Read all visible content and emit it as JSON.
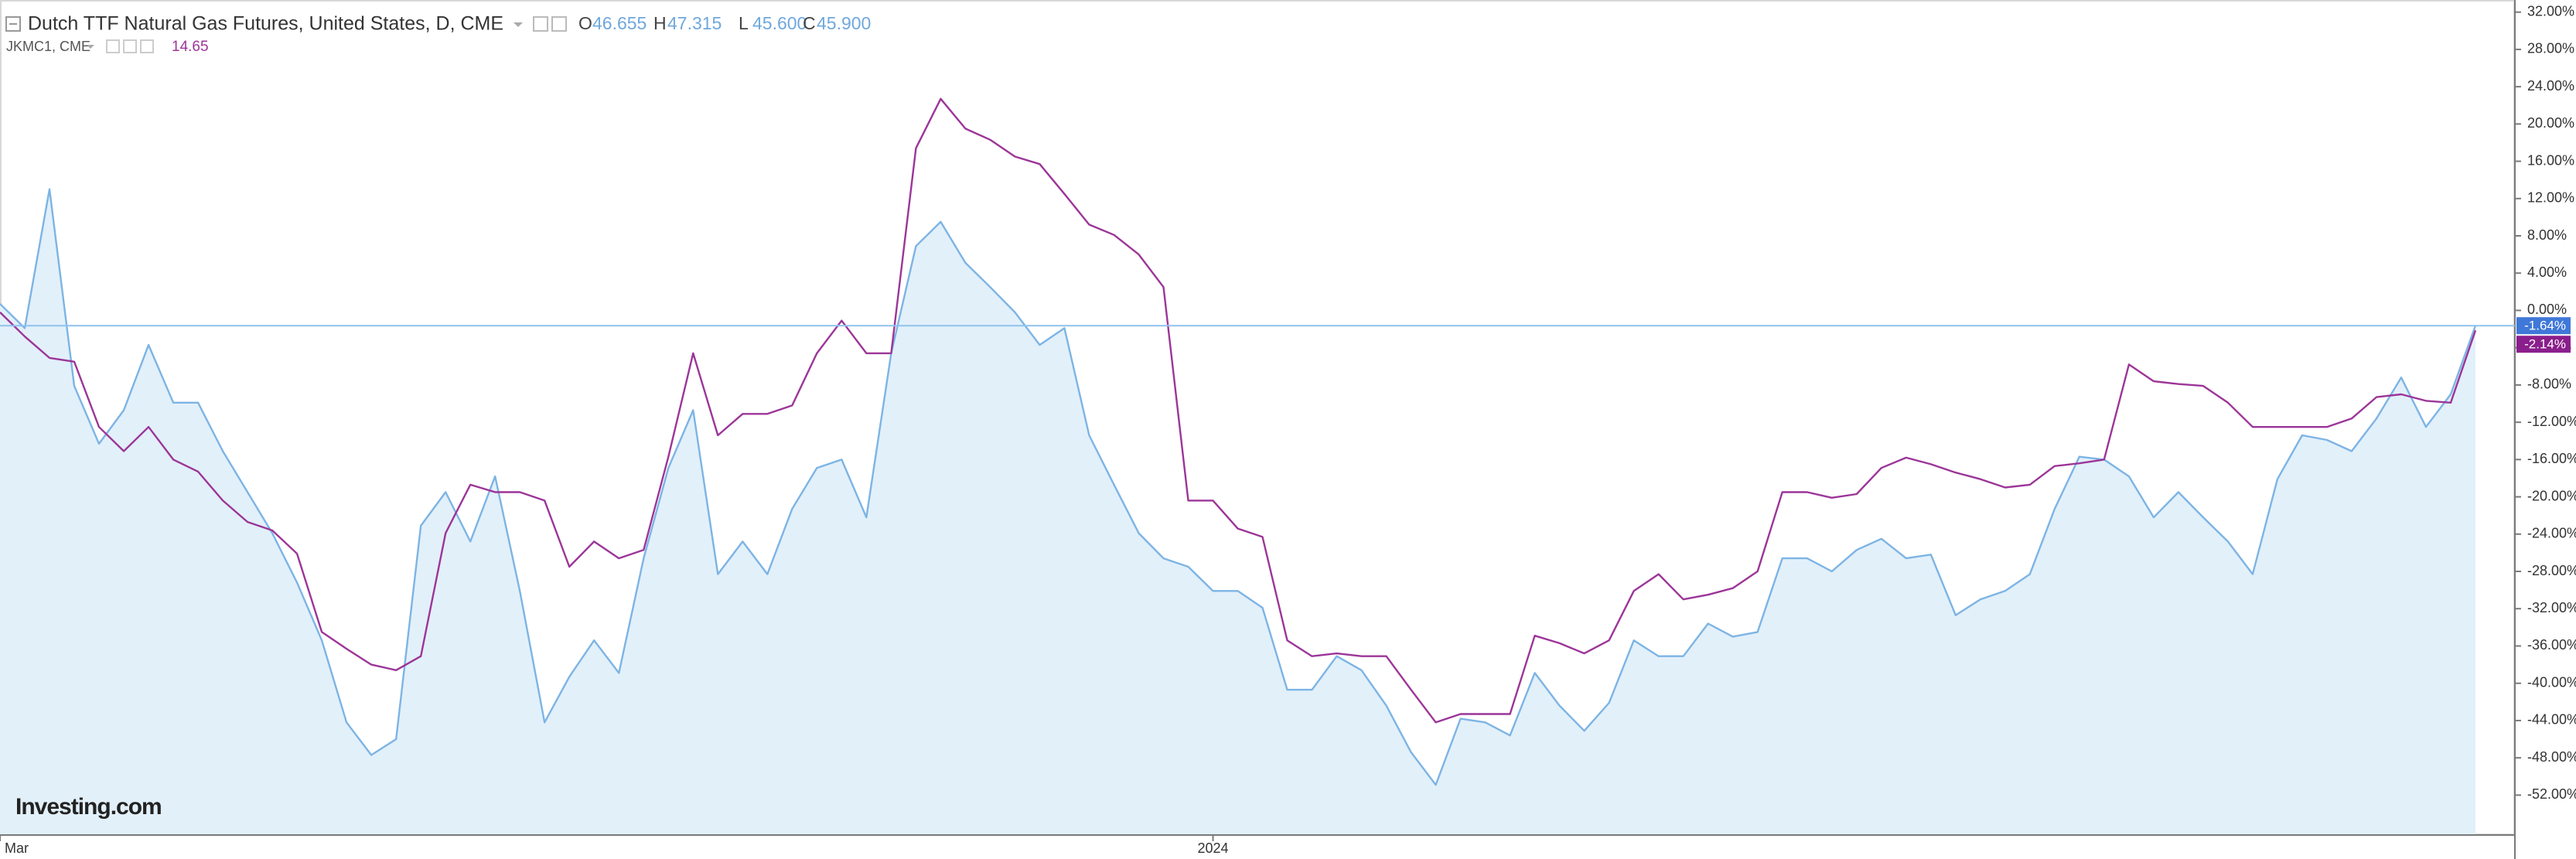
{
  "chart_data": {
    "type": "line",
    "title": "Dutch TTF Natural Gas Futures, United States, D, CME",
    "ohlc": [
      {
        "label": "O",
        "value": "46.655"
      },
      {
        "label": "H",
        "value": "47.315"
      },
      {
        "label": "L",
        "value": "45.600"
      },
      {
        "label": "C",
        "value": "45.900"
      }
    ],
    "watermark": "Investing.com",
    "categories": [
      "Mar",
      null,
      null,
      null,
      null,
      null,
      null,
      null,
      null,
      null,
      null,
      null,
      null,
      null,
      null,
      null,
      null,
      null,
      null,
      null,
      null,
      null,
      null,
      null,
      null,
      null,
      null,
      null,
      null,
      null,
      null,
      null,
      null,
      null,
      null,
      null,
      null,
      null,
      null,
      null,
      null,
      null,
      null,
      null,
      null,
      null,
      null,
      null,
      null,
      "2024",
      null,
      null,
      null,
      null,
      null,
      null,
      null,
      null,
      null,
      null,
      null,
      null,
      null,
      null,
      null,
      null,
      null,
      null,
      null,
      null,
      null,
      null,
      null,
      null,
      null,
      null,
      null,
      null,
      null,
      null,
      null,
      null,
      null,
      null,
      null,
      null,
      null,
      null,
      null,
      null,
      null,
      null,
      null,
      null,
      null,
      null,
      null,
      null,
      null,
      null,
      null
    ],
    "ylim": [
      -56.2,
      33.3
    ],
    "yticks": [
      {
        "value": -52,
        "label": "-52.00%"
      },
      {
        "value": -48,
        "label": "-48.00%"
      },
      {
        "value": -44,
        "label": "-44.00%"
      },
      {
        "value": -40,
        "label": "-40.00%"
      },
      {
        "value": -36,
        "label": "-36.00%"
      },
      {
        "value": -32,
        "label": "-32.00%"
      },
      {
        "value": -28,
        "label": "-28.00%"
      },
      {
        "value": -24,
        "label": "-24.00%"
      },
      {
        "value": -20,
        "label": "-20.00%"
      },
      {
        "value": -16,
        "label": "-16.00%"
      },
      {
        "value": -12,
        "label": "-12.00%"
      },
      {
        "value": -8,
        "label": "-8.00%"
      },
      {
        "value": -4,
        "label": "-4.00%"
      },
      {
        "value": 0,
        "label": "0.00%"
      },
      {
        "value": 4,
        "label": "4.00%"
      },
      {
        "value": 8,
        "label": "8.00%"
      },
      {
        "value": 12,
        "label": "12.00%"
      },
      {
        "value": 16,
        "label": "16.00%"
      },
      {
        "value": 20,
        "label": "20.00%"
      },
      {
        "value": 24,
        "label": "24.00%"
      },
      {
        "value": 28,
        "label": "28.00%"
      },
      {
        "value": 32,
        "label": "32.00%"
      }
    ],
    "series": [
      {
        "name": "Dutch TTF Natural Gas Futures, United States, D, CME",
        "color": "#7db4e4",
        "fill": "#e2f0fa",
        "values": [
          0.7,
          -1.9,
          13.0,
          -8.1,
          -14.3,
          -10.7,
          -3.7,
          -9.9,
          -9.9,
          -15.1,
          -19.5,
          -23.9,
          -29.2,
          -35.4,
          -44.2,
          -47.7,
          -46.0,
          -23.1,
          -19.5,
          -24.8,
          -17.8,
          -30.1,
          -44.2,
          -39.3,
          -35.4,
          -38.9,
          -26.6,
          -16.9,
          -10.7,
          -28.3,
          -24.8,
          -28.3,
          -21.3,
          -16.9,
          -16.0,
          -22.2,
          -4.6,
          6.9,
          9.5,
          5.1,
          2.5,
          -0.2,
          -3.7,
          -1.9,
          -13.4,
          -18.7,
          -23.9,
          -26.6,
          -27.5,
          -30.1,
          -30.1,
          -31.9,
          -40.7,
          -40.7,
          -37.1,
          -38.6,
          -42.4,
          -47.4,
          -50.9,
          -43.8,
          -44.2,
          -45.6,
          -38.9,
          -42.4,
          -45.1,
          -42.1,
          -35.4,
          -37.1,
          -37.1,
          -33.6,
          -35.0,
          -34.5,
          -26.6,
          -26.6,
          -28.0,
          -25.7,
          -24.5,
          -26.6,
          -26.2,
          -32.7,
          -31.0,
          -30.1,
          -28.3,
          -21.3,
          -15.7,
          -16.0,
          -17.8,
          -22.2,
          -19.5,
          -22.2,
          -24.8,
          -28.3,
          -18.1,
          -13.4,
          -13.9,
          -15.1,
          -11.6,
          -7.2,
          -12.5,
          -9.0,
          -1.64
        ],
        "value_labels": [
          null,
          null,
          null,
          null,
          null,
          null,
          null,
          null,
          null,
          null,
          null,
          null,
          null,
          null,
          null,
          null,
          null,
          null,
          null,
          null,
          null,
          null,
          null,
          null,
          null,
          null,
          null,
          null,
          null,
          null,
          null,
          null,
          null,
          null,
          null,
          null,
          null,
          null,
          null,
          null,
          null,
          null,
          null,
          null,
          null,
          null,
          null,
          null,
          null,
          null,
          null,
          null,
          null,
          null,
          null,
          null,
          null,
          null,
          null,
          null,
          null,
          null,
          null,
          null,
          null,
          null,
          null,
          null,
          null,
          null,
          null,
          null,
          null,
          null,
          null,
          null,
          null,
          null,
          null,
          null,
          null,
          null,
          null,
          null,
          null,
          null,
          null,
          null,
          null,
          null,
          null,
          null,
          null,
          null,
          null,
          null,
          null,
          null,
          null,
          null,
          "-1.64%"
        ]
      },
      {
        "name": "JKMC1, CME",
        "last": "14.65",
        "color": "#9c3598",
        "values": [
          -0.2,
          -2.8,
          -5.1,
          -5.5,
          -12.5,
          -15.1,
          -12.5,
          -16.0,
          -17.3,
          -20.4,
          -22.7,
          -23.6,
          -26.1,
          -34.5,
          -36.3,
          -38.0,
          -38.6,
          -37.1,
          -23.9,
          -18.7,
          -19.5,
          -19.5,
          -20.4,
          -27.5,
          -24.8,
          -26.6,
          -25.7,
          -15.7,
          -4.6,
          -13.4,
          -11.1,
          -11.1,
          -10.2,
          -4.6,
          -1.1,
          -4.6,
          -4.6,
          17.4,
          22.7,
          19.5,
          18.3,
          16.5,
          15.7,
          12.5,
          9.2,
          8.1,
          6.0,
          2.5,
          -20.4,
          -20.4,
          -23.4,
          -24.3,
          -35.4,
          -37.1,
          -36.8,
          -37.1,
          -37.1,
          -40.7,
          -44.2,
          -43.3,
          -43.3,
          -43.3,
          -34.9,
          -35.7,
          -36.8,
          -35.4,
          -30.1,
          -28.3,
          -31.0,
          -30.5,
          -29.8,
          -28.0,
          -19.5,
          -19.5,
          -20.1,
          -19.7,
          -16.9,
          -15.8,
          -16.5,
          -17.4,
          -18.1,
          -19.0,
          -18.7,
          -16.7,
          -16.4,
          -16.0,
          -5.8,
          -7.6,
          -7.9,
          -8.1,
          -9.9,
          -12.5,
          -12.5,
          -12.5,
          -12.5,
          -11.6,
          -9.3,
          -9.0,
          -9.7,
          -9.9,
          -2.14
        ],
        "value_labels": [
          null,
          null,
          null,
          null,
          null,
          null,
          null,
          null,
          null,
          null,
          null,
          null,
          null,
          null,
          null,
          null,
          null,
          null,
          null,
          null,
          null,
          null,
          null,
          null,
          null,
          null,
          null,
          null,
          null,
          null,
          null,
          null,
          null,
          null,
          null,
          null,
          null,
          null,
          null,
          null,
          null,
          null,
          null,
          null,
          null,
          null,
          null,
          null,
          null,
          null,
          null,
          null,
          null,
          null,
          null,
          null,
          null,
          null,
          null,
          null,
          null,
          null,
          null,
          null,
          null,
          null,
          null,
          null,
          null,
          null,
          null,
          null,
          null,
          null,
          null,
          null,
          null,
          null,
          null,
          null,
          null,
          null,
          null,
          null,
          null,
          null,
          null,
          null,
          null,
          null,
          null,
          null,
          null,
          null,
          null,
          null,
          null,
          null,
          null,
          null,
          "-2.14%"
        ]
      }
    ]
  }
}
